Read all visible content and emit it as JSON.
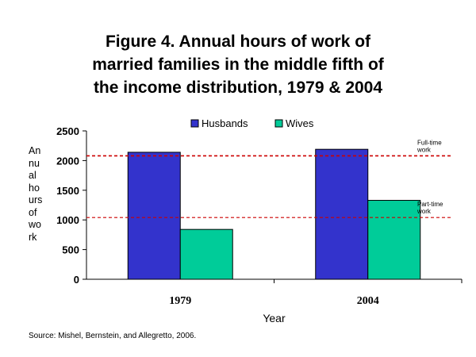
{
  "chart_data": {
    "type": "bar",
    "title_lines": [
      "Figure 4. Annual hours of work of",
      "married families in the middle fifth of",
      "the income distribution, 1979 & 2004"
    ],
    "categories": [
      "1979",
      "2004"
    ],
    "series": [
      {
        "name": "Husbands",
        "values": [
          2140,
          2190
        ],
        "color": "#3333cc"
      },
      {
        "name": "Wives",
        "values": [
          840,
          1330
        ],
        "color": "#00cc99"
      }
    ],
    "xlabel": "Year",
    "ylabel_lines": [
      "An",
      "nu",
      "al",
      "ho",
      "urs",
      "of",
      "wo",
      "rk"
    ],
    "ylim": [
      0,
      2500
    ],
    "yticks": [
      0,
      500,
      1000,
      1500,
      2000,
      2500
    ],
    "legend_position": "top",
    "grid": false,
    "reference_lines": [
      {
        "value": 2080,
        "label_lines": [
          "Full-time",
          "work"
        ],
        "color": "#cc0000"
      },
      {
        "value": 1040,
        "label_lines": [
          "Part-time",
          "work"
        ],
        "color": "#cc0000"
      }
    ],
    "source": "Source: Mishel, Bernstein, and Allegretto, 2006."
  }
}
